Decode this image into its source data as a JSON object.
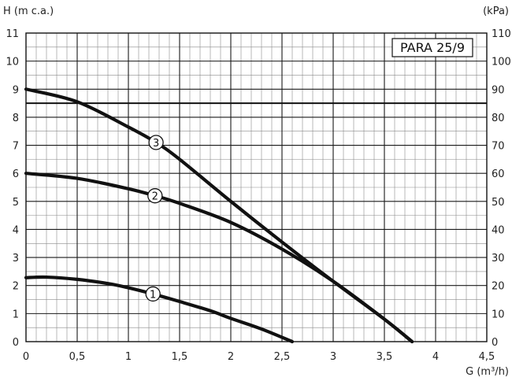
{
  "chart_data": {
    "type": "line",
    "model_label": "PARA 25/9",
    "ylabel_left": "H (m c.a.)",
    "ylabel_right": "(kPa)",
    "xlabel": "G (m³/h)",
    "xlim": [
      0,
      4.5
    ],
    "ylim": [
      0,
      11
    ],
    "ylim_right": [
      0,
      110
    ],
    "x_ticks": [
      "0",
      "0,5",
      "1",
      "1,5",
      "2",
      "2,5",
      "3",
      "3,5",
      "4",
      "4,5"
    ],
    "y_ticks_left": [
      "0",
      "1",
      "2",
      "3",
      "4",
      "5",
      "6",
      "7",
      "8",
      "9",
      "10",
      "11"
    ],
    "y_ticks_right": [
      "0",
      "10",
      "20",
      "30",
      "40",
      "50",
      "60",
      "70",
      "80",
      "90",
      "100",
      "110"
    ],
    "reference_line_y": 8.5,
    "grid": true,
    "series": [
      {
        "marker": "1",
        "marker_x": 1.24,
        "x": [
          0,
          0.2,
          0.5,
          0.8,
          1.0,
          1.24,
          1.5,
          1.8,
          2.0,
          2.3,
          2.6
        ],
        "y": [
          2.28,
          2.3,
          2.22,
          2.07,
          1.92,
          1.7,
          1.43,
          1.1,
          0.83,
          0.45,
          0.0
        ]
      },
      {
        "marker": "2",
        "marker_x": 1.26,
        "x": [
          0,
          0.5,
          1.0,
          1.26,
          1.5,
          2.0,
          2.5,
          3.0,
          3.5,
          3.77
        ],
        "y": [
          6.0,
          5.82,
          5.45,
          5.2,
          4.93,
          4.25,
          3.3,
          2.15,
          0.8,
          0.0
        ]
      },
      {
        "marker": "3",
        "marker_x": 1.27,
        "x": [
          0,
          0.5,
          1.0,
          1.27,
          1.5,
          2.0,
          2.5,
          3.0,
          3.5,
          3.77
        ],
        "y": [
          9.0,
          8.55,
          7.65,
          7.1,
          6.5,
          5.0,
          3.55,
          2.15,
          0.8,
          0.0
        ]
      }
    ]
  }
}
